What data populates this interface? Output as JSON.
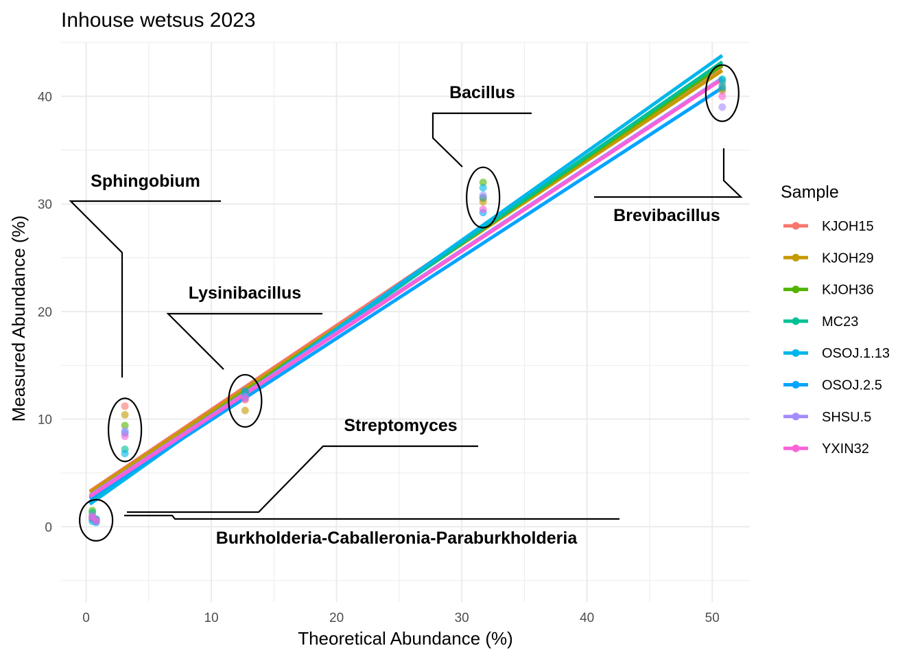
{
  "chart_data": {
    "type": "scatter",
    "title": "Inhouse wetsus 2023",
    "xlabel": "Theoretical Abundance (%)",
    "ylabel": "Measured Abundance (%)",
    "xlim": [
      -2,
      53
    ],
    "ylim": [
      -7,
      45
    ],
    "xticks": [
      0,
      10,
      20,
      30,
      40,
      50
    ],
    "yticks": [
      0,
      10,
      20,
      30,
      40
    ],
    "grid": true,
    "legend": {
      "title": "Sample",
      "position": "right"
    },
    "series": [
      {
        "name": "KJOH15",
        "color": "#F8766D",
        "points": [
          [
            0.5,
            0.7
          ],
          [
            0.8,
            0.6
          ],
          [
            3.1,
            11.2
          ],
          [
            12.7,
            11.8
          ],
          [
            31.7,
            30.5
          ],
          [
            50.8,
            40.5
          ]
        ],
        "fit": [
          [
            0.3,
            3.3
          ],
          [
            50.8,
            42.8
          ]
        ]
      },
      {
        "name": "KJOH29",
        "color": "#C49A00",
        "points": [
          [
            0.5,
            1.0
          ],
          [
            0.8,
            0.5
          ],
          [
            3.1,
            10.4
          ],
          [
            12.7,
            10.8
          ],
          [
            31.7,
            30.2
          ],
          [
            50.8,
            41.2
          ]
        ],
        "fit": [
          [
            0.3,
            3.2
          ],
          [
            50.8,
            42.4
          ]
        ]
      },
      {
        "name": "KJOH36",
        "color": "#53B400",
        "points": [
          [
            0.5,
            1.5
          ],
          [
            0.8,
            0.6
          ],
          [
            3.1,
            9.4
          ],
          [
            12.7,
            12.5
          ],
          [
            31.7,
            32.0
          ],
          [
            50.8,
            40.7
          ]
        ],
        "fit": [
          [
            0.3,
            2.7
          ],
          [
            50.8,
            42.9
          ]
        ]
      },
      {
        "name": "MC23",
        "color": "#00C094",
        "points": [
          [
            0.5,
            1.3
          ],
          [
            0.8,
            0.7
          ],
          [
            3.1,
            7.2
          ],
          [
            12.7,
            12.2
          ],
          [
            31.7,
            30.6
          ],
          [
            50.8,
            41.6
          ]
        ],
        "fit": [
          [
            0.3,
            2.3
          ],
          [
            50.8,
            43.2
          ]
        ]
      },
      {
        "name": "OSOJ.1.13",
        "color": "#00B6EB",
        "points": [
          [
            0.5,
            0.5
          ],
          [
            0.8,
            0.7
          ],
          [
            3.1,
            6.8
          ],
          [
            12.7,
            12.0
          ],
          [
            31.7,
            31.5
          ],
          [
            50.8,
            41.5
          ]
        ],
        "fit": [
          [
            0.3,
            2.1
          ],
          [
            50.8,
            43.8
          ]
        ]
      },
      {
        "name": "OSOJ.2.5",
        "color": "#06A4FF",
        "points": [
          [
            0.5,
            0.8
          ],
          [
            0.8,
            0.4
          ],
          [
            3.1,
            8.7
          ],
          [
            12.7,
            12.6
          ],
          [
            31.7,
            29.2
          ],
          [
            50.8,
            40.9
          ]
        ],
        "fit": [
          [
            0.3,
            2.6
          ],
          [
            50.8,
            40.8
          ]
        ]
      },
      {
        "name": "SHSU.5",
        "color": "#A58AFF",
        "points": [
          [
            0.5,
            1.0
          ],
          [
            0.8,
            0.5
          ],
          [
            3.1,
            8.9
          ],
          [
            12.7,
            12.1
          ],
          [
            31.7,
            30.8
          ],
          [
            50.8,
            39.0
          ]
        ],
        "fit": [
          [
            0.3,
            2.9
          ],
          [
            50.8,
            41.7
          ]
        ]
      },
      {
        "name": "YXIN32",
        "color": "#FB61D7",
        "points": [
          [
            0.5,
            0.9
          ],
          [
            0.8,
            0.6
          ],
          [
            3.1,
            8.4
          ],
          [
            12.7,
            11.9
          ],
          [
            31.7,
            29.5
          ],
          [
            50.8,
            40.0
          ]
        ],
        "fit": [
          [
            0.3,
            2.8
          ],
          [
            50.8,
            41.6
          ]
        ]
      }
    ],
    "annotations": [
      {
        "text": "Sphingobium",
        "circle": [
          3.1,
          9.0
        ]
      },
      {
        "text": "Lysinibacillus",
        "circle": [
          12.7,
          11.7
        ]
      },
      {
        "text": "Bacillus",
        "circle": [
          31.7,
          30.6
        ]
      },
      {
        "text": "Brevibacillus",
        "circle": [
          50.8,
          40.3
        ]
      },
      {
        "text": "Streptomyces",
        "circle": [
          0.8,
          0.6
        ]
      },
      {
        "text": "Burkholderia-Caballeronia-Paraburkholderia",
        "circle": [
          0.5,
          1.0
        ]
      }
    ]
  }
}
